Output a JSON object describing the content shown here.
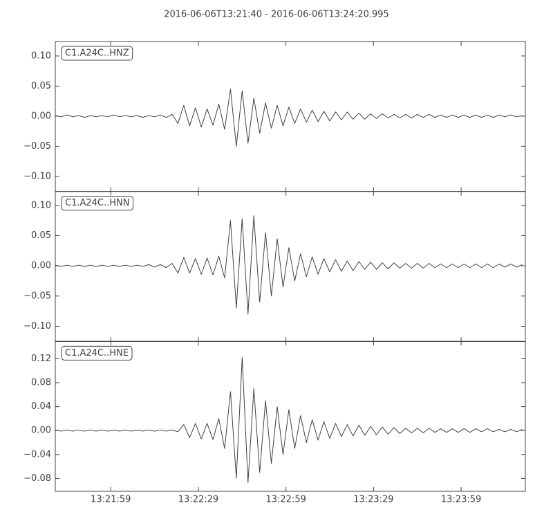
{
  "chart_data": [
    {
      "type": "line",
      "title": "2016-06-06T13:21:40  -  2016-06-06T13:24:20.995",
      "x": [
        "13:21:40",
        "13:21:42",
        "13:21:44",
        "13:21:46",
        "13:21:48",
        "13:21:50",
        "13:21:52",
        "13:21:54",
        "13:21:56",
        "13:21:58",
        "13:22:00",
        "13:22:02",
        "13:22:04",
        "13:22:06",
        "13:22:08",
        "13:22:10",
        "13:22:12",
        "13:22:14",
        "13:22:16",
        "13:22:18",
        "13:22:20",
        "13:22:22",
        "13:22:24",
        "13:22:26",
        "13:22:28",
        "13:22:30",
        "13:22:32",
        "13:22:34",
        "13:22:36",
        "13:22:38",
        "13:22:40",
        "13:22:42",
        "13:22:44",
        "13:22:46",
        "13:22:48",
        "13:22:50",
        "13:22:52",
        "13:22:54",
        "13:22:56",
        "13:22:58",
        "13:23:00",
        "13:23:02",
        "13:23:04",
        "13:23:06",
        "13:23:08",
        "13:23:10",
        "13:23:12",
        "13:23:14",
        "13:23:16",
        "13:23:18",
        "13:23:20",
        "13:23:22",
        "13:23:24",
        "13:23:26",
        "13:23:28",
        "13:23:30",
        "13:23:32",
        "13:23:34",
        "13:23:36",
        "13:23:38",
        "13:23:40",
        "13:23:42",
        "13:23:44",
        "13:23:46",
        "13:23:48",
        "13:23:50",
        "13:23:52",
        "13:23:54",
        "13:23:56",
        "13:23:58",
        "13:24:00",
        "13:24:02",
        "13:24:04",
        "13:24:06",
        "13:24:08",
        "13:24:10",
        "13:24:12",
        "13:24:14",
        "13:24:16",
        "13:24:18",
        "13:24:20"
      ],
      "series": [
        {
          "name": "C1.A24C..HNZ",
          "color": "#404040",
          "values": [
            0.001,
            -0.001,
            0.002,
            -0.001,
            0.001,
            -0.002,
            0.001,
            -0.001,
            0.001,
            -0.001,
            0.002,
            -0.001,
            0.001,
            -0.001,
            0.001,
            -0.002,
            0.001,
            -0.001,
            0.002,
            -0.002,
            0.003,
            -0.012,
            0.018,
            -0.016,
            0.014,
            -0.018,
            0.012,
            -0.015,
            0.02,
            -0.022,
            0.045,
            -0.05,
            0.042,
            -0.045,
            0.03,
            -0.028,
            0.022,
            -0.02,
            0.018,
            -0.016,
            0.015,
            -0.012,
            0.012,
            -0.01,
            0.01,
            -0.009,
            0.008,
            -0.008,
            0.007,
            -0.006,
            0.007,
            -0.005,
            0.005,
            -0.005,
            0.004,
            -0.004,
            0.004,
            -0.003,
            0.003,
            -0.003,
            0.003,
            -0.003,
            0.003,
            -0.002,
            0.003,
            -0.002,
            0.002,
            -0.002,
            0.002,
            -0.002,
            0.002,
            -0.002,
            0.002,
            -0.002,
            0.002,
            -0.002,
            0.002,
            -0.001,
            0.002,
            -0.001,
            0.001
          ]
        }
      ],
      "xlim": [
        "13:21:40",
        "13:24:20.995"
      ],
      "xticks": [
        "13:21:59",
        "13:22:29",
        "13:22:59",
        "13:23:29",
        "13:23:59"
      ],
      "ylim": [
        -0.125,
        0.124
      ],
      "yticks": [
        {
          "value": -0.1,
          "label": "−0.10"
        },
        {
          "value": -0.05,
          "label": "−0.05"
        },
        {
          "value": 0,
          "label": "0.00"
        },
        {
          "value": 0.05,
          "label": "0.05"
        },
        {
          "value": 0.1,
          "label": "0.10"
        }
      ]
    },
    {
      "type": "line",
      "x": [
        "13:21:40",
        "13:21:42",
        "13:21:44",
        "13:21:46",
        "13:21:48",
        "13:21:50",
        "13:21:52",
        "13:21:54",
        "13:21:56",
        "13:21:58",
        "13:22:00",
        "13:22:02",
        "13:22:04",
        "13:22:06",
        "13:22:08",
        "13:22:10",
        "13:22:12",
        "13:22:14",
        "13:22:16",
        "13:22:18",
        "13:22:20",
        "13:22:22",
        "13:22:24",
        "13:22:26",
        "13:22:28",
        "13:22:30",
        "13:22:32",
        "13:22:34",
        "13:22:36",
        "13:22:38",
        "13:22:40",
        "13:22:42",
        "13:22:44",
        "13:22:46",
        "13:22:48",
        "13:22:50",
        "13:22:52",
        "13:22:54",
        "13:22:56",
        "13:22:58",
        "13:23:00",
        "13:23:02",
        "13:23:04",
        "13:23:06",
        "13:23:08",
        "13:23:10",
        "13:23:12",
        "13:23:14",
        "13:23:16",
        "13:23:18",
        "13:23:20",
        "13:23:22",
        "13:23:24",
        "13:23:26",
        "13:23:28",
        "13:23:30",
        "13:23:32",
        "13:23:34",
        "13:23:36",
        "13:23:38",
        "13:23:40",
        "13:23:42",
        "13:23:44",
        "13:23:46",
        "13:23:48",
        "13:23:50",
        "13:23:52",
        "13:23:54",
        "13:23:56",
        "13:23:58",
        "13:24:00",
        "13:24:02",
        "13:24:04",
        "13:24:06",
        "13:24:08",
        "13:24:10",
        "13:24:12",
        "13:24:14",
        "13:24:16",
        "13:24:18",
        "13:24:20"
      ],
      "series": [
        {
          "name": "C1.A24C..HNN",
          "color": "#404040",
          "values": [
            0.001,
            -0.001,
            0.001,
            -0.001,
            0.001,
            -0.001,
            0.001,
            -0.001,
            0.001,
            -0.001,
            0.001,
            -0.001,
            0.001,
            -0.001,
            0.001,
            -0.001,
            0.002,
            -0.002,
            0.002,
            -0.003,
            0.004,
            -0.012,
            0.014,
            -0.012,
            0.012,
            -0.014,
            0.013,
            -0.015,
            0.016,
            -0.02,
            0.075,
            -0.07,
            0.078,
            -0.08,
            0.083,
            -0.06,
            0.055,
            -0.05,
            0.045,
            -0.035,
            0.03,
            -0.025,
            0.02,
            -0.018,
            0.015,
            -0.014,
            0.012,
            -0.01,
            0.01,
            -0.009,
            0.008,
            -0.008,
            0.007,
            -0.006,
            0.006,
            -0.006,
            0.005,
            -0.005,
            0.005,
            -0.004,
            0.004,
            -0.004,
            0.004,
            -0.004,
            0.004,
            -0.003,
            0.003,
            -0.003,
            0.003,
            -0.003,
            0.003,
            -0.003,
            0.003,
            -0.003,
            0.003,
            -0.003,
            0.003,
            -0.002,
            0.003,
            -0.002,
            0.002
          ]
        }
      ],
      "xlim": [
        "13:21:40",
        "13:24:20.995"
      ],
      "xticks": [
        "13:21:59",
        "13:22:29",
        "13:22:59",
        "13:23:29",
        "13:23:59"
      ],
      "ylim": [
        -0.125,
        0.123
      ],
      "yticks": [
        {
          "value": -0.1,
          "label": "−0.10"
        },
        {
          "value": -0.05,
          "label": "−0.05"
        },
        {
          "value": 0,
          "label": "0.00"
        },
        {
          "value": 0.05,
          "label": "0.05"
        },
        {
          "value": 0.1,
          "label": "0.10"
        }
      ]
    },
    {
      "type": "line",
      "x": [
        "13:21:40",
        "13:21:42",
        "13:21:44",
        "13:21:46",
        "13:21:48",
        "13:21:50",
        "13:21:52",
        "13:21:54",
        "13:21:56",
        "13:21:58",
        "13:22:00",
        "13:22:02",
        "13:22:04",
        "13:22:06",
        "13:22:08",
        "13:22:10",
        "13:22:12",
        "13:22:14",
        "13:22:16",
        "13:22:18",
        "13:22:20",
        "13:22:22",
        "13:22:24",
        "13:22:26",
        "13:22:28",
        "13:22:30",
        "13:22:32",
        "13:22:34",
        "13:22:36",
        "13:22:38",
        "13:22:40",
        "13:22:42",
        "13:22:44",
        "13:22:46",
        "13:22:48",
        "13:22:50",
        "13:22:52",
        "13:22:54",
        "13:22:56",
        "13:22:58",
        "13:23:00",
        "13:23:02",
        "13:23:04",
        "13:23:06",
        "13:23:08",
        "13:23:10",
        "13:23:12",
        "13:23:14",
        "13:23:16",
        "13:23:18",
        "13:23:20",
        "13:23:22",
        "13:23:24",
        "13:23:26",
        "13:23:28",
        "13:23:30",
        "13:23:32",
        "13:23:34",
        "13:23:36",
        "13:23:38",
        "13:23:40",
        "13:23:42",
        "13:23:44",
        "13:23:46",
        "13:23:48",
        "13:23:50",
        "13:23:52",
        "13:23:54",
        "13:23:56",
        "13:23:58",
        "13:24:00",
        "13:24:02",
        "13:24:04",
        "13:24:06",
        "13:24:08",
        "13:24:10",
        "13:24:12",
        "13:24:14",
        "13:24:16",
        "13:24:18",
        "13:24:20"
      ],
      "series": [
        {
          "name": "C1.A24C..HNE",
          "color": "#404040",
          "values": [
            0.001,
            -0.001,
            0.001,
            -0.001,
            0.001,
            -0.001,
            0.001,
            -0.001,
            0.001,
            -0.001,
            0.001,
            -0.001,
            0.001,
            -0.001,
            0.001,
            -0.001,
            0.001,
            -0.001,
            0.001,
            -0.001,
            0.001,
            -0.002,
            0.01,
            -0.012,
            0.012,
            -0.014,
            0.012,
            -0.015,
            0.02,
            -0.03,
            0.065,
            -0.08,
            0.122,
            -0.087,
            0.07,
            -0.07,
            0.05,
            -0.055,
            0.04,
            -0.04,
            0.035,
            -0.03,
            0.025,
            -0.02,
            0.018,
            -0.016,
            0.015,
            -0.013,
            0.012,
            -0.01,
            0.01,
            -0.009,
            0.009,
            -0.008,
            0.007,
            -0.007,
            0.006,
            -0.006,
            0.005,
            -0.005,
            0.004,
            -0.004,
            0.004,
            -0.004,
            0.004,
            -0.003,
            0.003,
            -0.003,
            0.003,
            -0.003,
            0.003,
            -0.003,
            0.003,
            -0.002,
            0.003,
            -0.002,
            0.002,
            -0.002,
            0.002,
            -0.002,
            0.002
          ]
        }
      ],
      "xlim": [
        "13:21:40",
        "13:24:20.995"
      ],
      "xticks": [
        "13:21:59",
        "13:22:29",
        "13:22:59",
        "13:23:29",
        "13:23:59"
      ],
      "ylim": [
        -0.1015,
        0.149
      ],
      "yticks": [
        {
          "value": -0.08,
          "label": "−0.08"
        },
        {
          "value": -0.04,
          "label": "−0.04"
        },
        {
          "value": 0,
          "label": "0.00"
        },
        {
          "value": 0.04,
          "label": "0.04"
        },
        {
          "value": 0.08,
          "label": "0.08"
        },
        {
          "value": 0.12,
          "label": "0.12"
        }
      ]
    }
  ]
}
